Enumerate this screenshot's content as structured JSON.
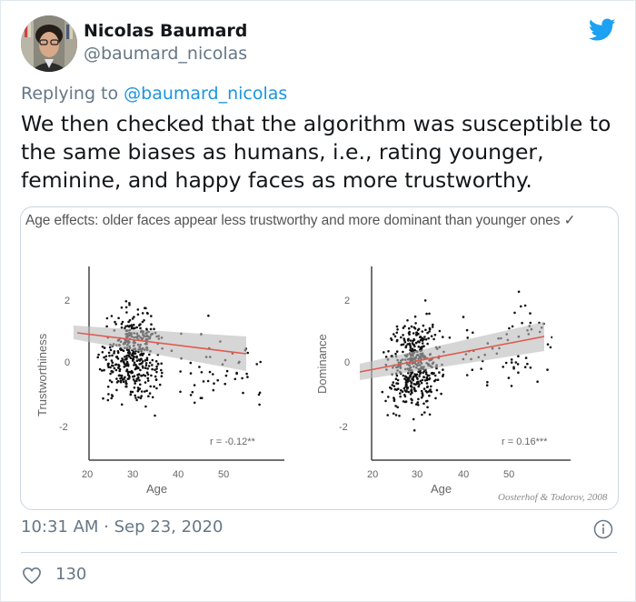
{
  "tweet": {
    "author_name": "Nicolas Baumard",
    "author_handle": "@baumard_nicolas",
    "replying_prefix": "Replying to ",
    "replying_to": "@baumard_nicolas",
    "text": "We then checked that the algorithm was susceptible to the same biases as humans, i.e., rating younger, feminine, and happy faces as more trustworthy.",
    "timestamp": "10:31 AM · Sep 23, 2020",
    "like_count": "130",
    "icons": {
      "brand": "twitter-bird-icon",
      "info": "info-icon",
      "like": "heart-icon"
    },
    "colors": {
      "brand_blue": "#1da1f2",
      "text": "#14171a",
      "secondary": "#657786",
      "link": "#1b95e0"
    }
  },
  "media": {
    "title": "Age effects: older faces appear less trustworthy and more dominant than younger ones ✓",
    "credit": "Oosterhof & Todorov, 2008"
  },
  "chart_data": [
    {
      "type": "scatter",
      "title": "",
      "xlabel": "Age",
      "ylabel": "Trustworthiness",
      "x_ticks": [
        20,
        30,
        40,
        50
      ],
      "y_ticks": [
        -2,
        0,
        2
      ],
      "xlim": [
        16,
        60
      ],
      "ylim": [
        -3,
        3
      ],
      "annotation": "r = -0.12**",
      "regression": {
        "x": [
          18,
          56
        ],
        "y": [
          0.65,
          -0.05
        ],
        "color": "#e05a4f",
        "ci_band": true
      },
      "points_description": "~500 points, concentrated at ages 20-38, values spread from -2.5 to 2.5",
      "grid": false
    },
    {
      "type": "scatter",
      "title": "",
      "xlabel": "Age",
      "ylabel": "Dominance",
      "x_ticks": [
        20,
        30,
        40,
        50
      ],
      "y_ticks": [
        -2,
        0,
        2
      ],
      "xlim": [
        16,
        60
      ],
      "ylim": [
        -3,
        3
      ],
      "annotation": "r = 0.16***",
      "regression": {
        "x": [
          17,
          57
        ],
        "y": [
          -0.45,
          0.65
        ],
        "color": "#e05a4f",
        "ci_band": true
      },
      "points_description": "~500 points, concentrated at ages 20-38, values spread from -2.5 to 2.6",
      "grid": false
    }
  ]
}
